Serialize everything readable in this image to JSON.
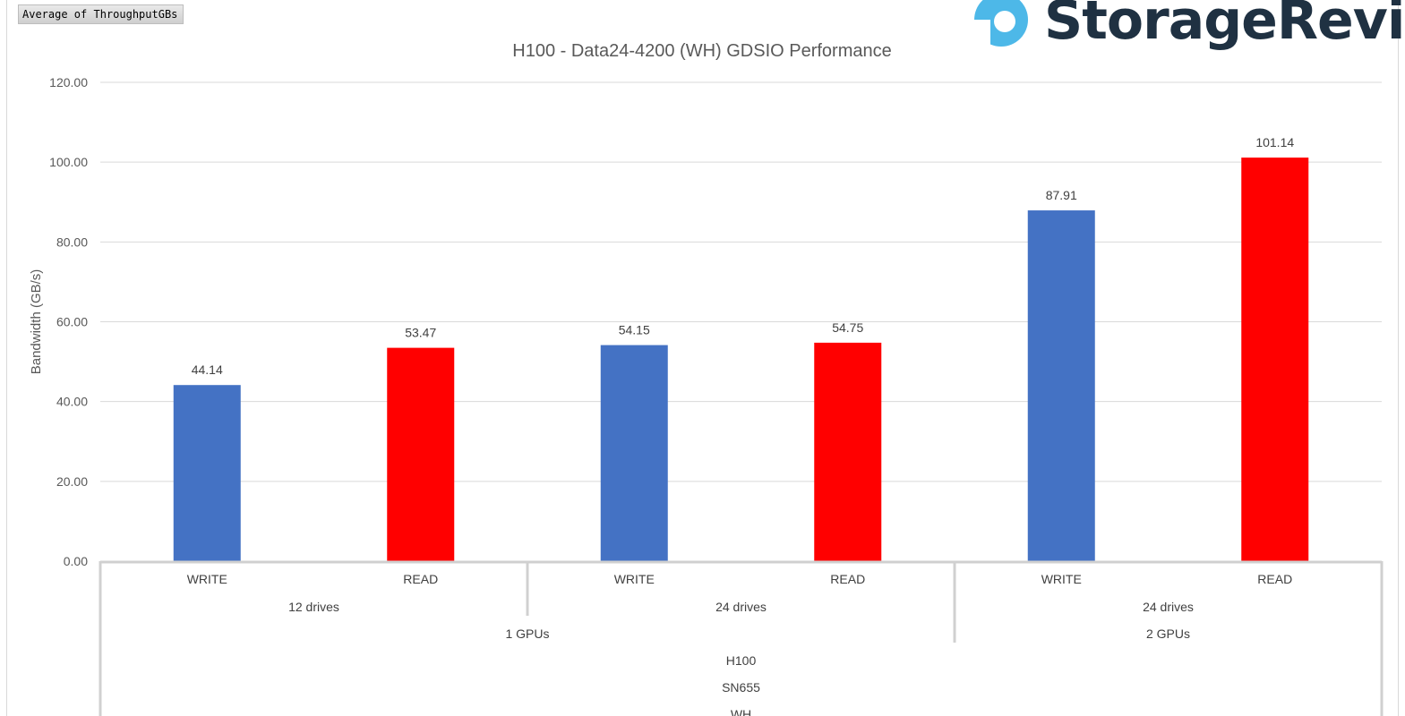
{
  "pivot_field_button": "Average of ThroughputGBs",
  "brand": {
    "name": "StorageReview",
    "logo_color": "#4db8e8",
    "text_color": "#1f3142"
  },
  "chart_data": {
    "type": "bar",
    "title": "H100 - Data24-4200 (WH) GDSIO Performance",
    "ylabel": "Bandwidth (GB/s)",
    "xlabel": "",
    "ylim": [
      0,
      120
    ],
    "yticks": [
      "0.00",
      "20.00",
      "40.00",
      "60.00",
      "80.00",
      "100.00",
      "120.00"
    ],
    "grid": true,
    "categories": [
      "WRITE",
      "READ",
      "WRITE",
      "READ",
      "WRITE",
      "READ"
    ],
    "values": [
      44.14,
      53.47,
      54.15,
      54.75,
      87.91,
      101.14
    ],
    "data_labels": [
      "44.14",
      "53.47",
      "54.15",
      "54.75",
      "87.91",
      "101.14"
    ],
    "colors": [
      "#4472c4",
      "#ff0000",
      "#4472c4",
      "#ff0000",
      "#4472c4",
      "#ff0000"
    ],
    "group_levels": [
      {
        "labels": [
          "12 drives",
          "24 drives",
          "24 drives"
        ],
        "spans": [
          2,
          2,
          2
        ]
      },
      {
        "labels": [
          "1 GPUs",
          "2 GPUs"
        ],
        "spans": [
          4,
          2
        ]
      },
      {
        "labels": [
          "H100"
        ],
        "spans": [
          6
        ]
      },
      {
        "labels": [
          "SN655"
        ],
        "spans": [
          6
        ]
      },
      {
        "labels": [
          "WH"
        ],
        "spans": [
          6
        ]
      }
    ]
  }
}
